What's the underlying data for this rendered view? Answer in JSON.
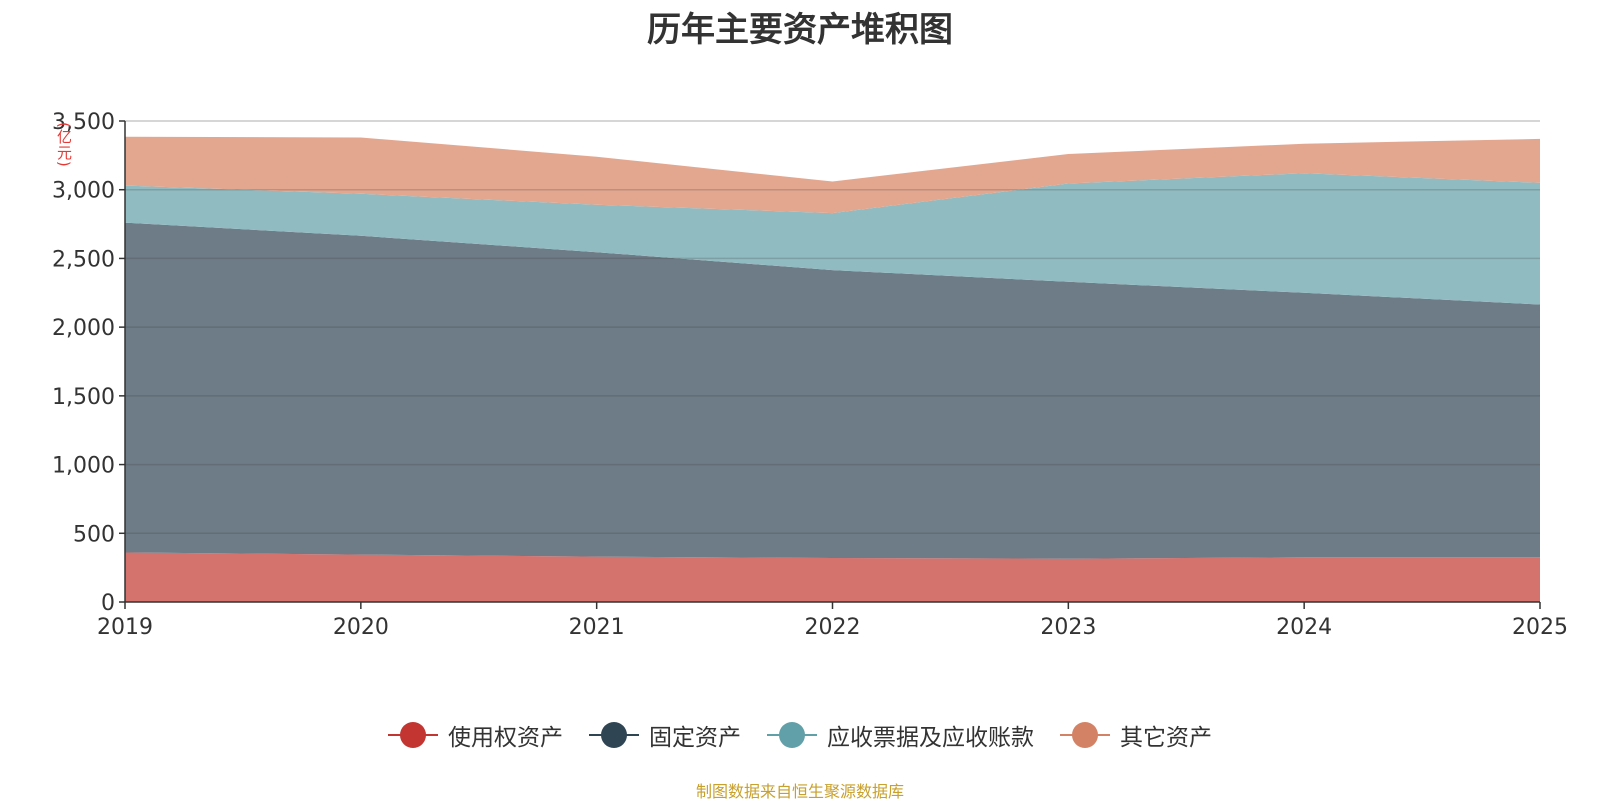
{
  "chart_data": {
    "type": "area",
    "stacked": true,
    "title": "历年主要资产堆积图",
    "ylabel": "(亿元)",
    "x": [
      "2019",
      "2020",
      "2021",
      "2022",
      "2023",
      "2024",
      "2025"
    ],
    "ylim": [
      0,
      3500
    ],
    "yticks": [
      0,
      500,
      1000,
      1500,
      2000,
      2500,
      3000,
      3500
    ],
    "ytick_labels": [
      "0",
      "500",
      "1,000",
      "1,500",
      "2,000",
      "2,500",
      "3,000",
      "3,500"
    ],
    "grid": true,
    "legend_position": "bottom",
    "series": [
      {
        "name": "使用权资产",
        "values": [
          360,
          345,
          330,
          320,
          315,
          325,
          325
        ],
        "color": "#c23531",
        "fill": "#d4726e"
      },
      {
        "name": "固定资产",
        "values": [
          2400,
          2320,
          2215,
          2095,
          2015,
          1925,
          1840
        ],
        "color": "#2f4554",
        "fill": "#6e7c87"
      },
      {
        "name": "应收票据及应收账款",
        "values": [
          270,
          305,
          345,
          415,
          715,
          870,
          885
        ],
        "color": "#61a0a8",
        "fill": "#90bbc1"
      },
      {
        "name": "其它资产",
        "values": [
          355,
          410,
          350,
          230,
          215,
          215,
          320
        ],
        "color": "#d48265",
        "fill": "#e3a790"
      }
    ]
  },
  "source_note": "制图数据来自恒生聚源数据库"
}
